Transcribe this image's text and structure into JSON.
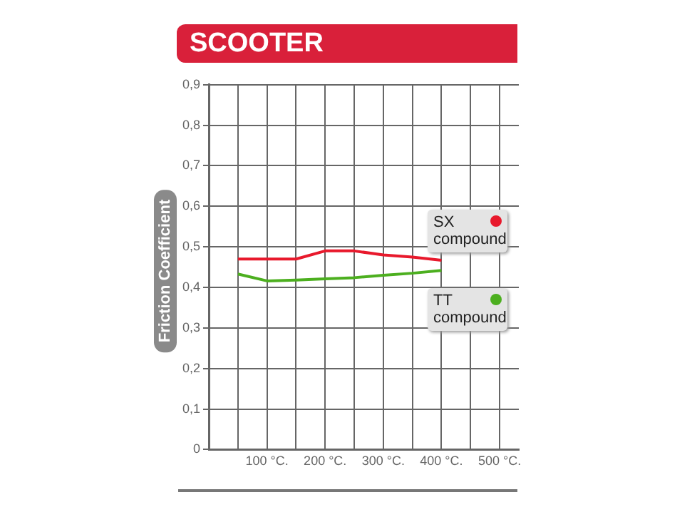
{
  "chart_data": {
    "type": "line",
    "title": "SCOOTER",
    "ylabel": "Friction Coefficient",
    "x": [
      50,
      100,
      150,
      200,
      250,
      300,
      350,
      400
    ],
    "series": [
      {
        "name": "SX compound",
        "color": "#e8192c",
        "values": [
          0.47,
          0.47,
          0.47,
          0.49,
          0.49,
          0.48,
          0.475,
          0.467
        ]
      },
      {
        "name": "TT compound",
        "color": "#4caf1f",
        "values": [
          0.433,
          0.416,
          0.418,
          0.421,
          0.424,
          0.43,
          0.435,
          0.442
        ]
      }
    ],
    "xlim": [
      0,
      533
    ],
    "xticks": [
      {
        "value": 50,
        "label": null
      },
      {
        "value": 100,
        "label": "100 °C."
      },
      {
        "value": 150,
        "label": null
      },
      {
        "value": 200,
        "label": "200 °C."
      },
      {
        "value": 250,
        "label": null
      },
      {
        "value": 300,
        "label": "300 °C."
      },
      {
        "value": 350,
        "label": null
      },
      {
        "value": 400,
        "label": "400 °C."
      },
      {
        "value": 450,
        "label": null
      },
      {
        "value": 500,
        "label": "500 °C."
      }
    ],
    "ylim": [
      0,
      0.9
    ],
    "yticks": [
      0,
      {
        "value": 0.1,
        "label": "0,1"
      },
      {
        "value": 0.2,
        "label": "0,2"
      },
      {
        "value": 0.3,
        "label": "0,3"
      },
      {
        "value": 0.4,
        "label": "0,4"
      },
      {
        "value": 0.5,
        "label": "0,5"
      },
      {
        "value": 0.6,
        "label": "0,6"
      },
      {
        "value": 0.7,
        "label": "0,7"
      },
      {
        "value": 0.8,
        "label": "0,8"
      },
      {
        "value": 0.9,
        "label": "0,9"
      }
    ],
    "grid": true,
    "legend": "right",
    "line_style": "solid"
  }
}
